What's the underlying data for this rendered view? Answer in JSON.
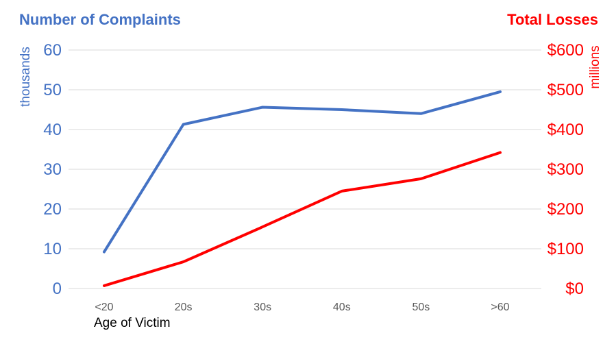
{
  "chart_data": {
    "type": "line",
    "categories": [
      "<20",
      "20s",
      "30s",
      "40s",
      "50s",
      ">60"
    ],
    "xlabel": "Age of Victim",
    "y_left": {
      "title": "Number of Complaints",
      "unit_label": "thousands",
      "range": [
        0,
        60
      ],
      "ticks": [
        "0",
        "10",
        "20",
        "30",
        "40",
        "50",
        "60"
      ],
      "color": "#4472C4"
    },
    "y_right": {
      "title": "Total Losses",
      "unit_label": "millions",
      "range": [
        0,
        600
      ],
      "ticks": [
        "$0",
        "$100",
        "$200",
        "$300",
        "$400",
        "$500",
        "$600"
      ],
      "color": "#FF0000"
    },
    "series": [
      {
        "axis": "left",
        "color": "#4472C4",
        "values": [
          9.2,
          41.3,
          45.6,
          45.0,
          44.0,
          49.5
        ]
      },
      {
        "axis": "right",
        "color": "#FF0000",
        "values": [
          7,
          67,
          155,
          245,
          276,
          342
        ]
      }
    ],
    "grid": true,
    "legend": "none"
  }
}
